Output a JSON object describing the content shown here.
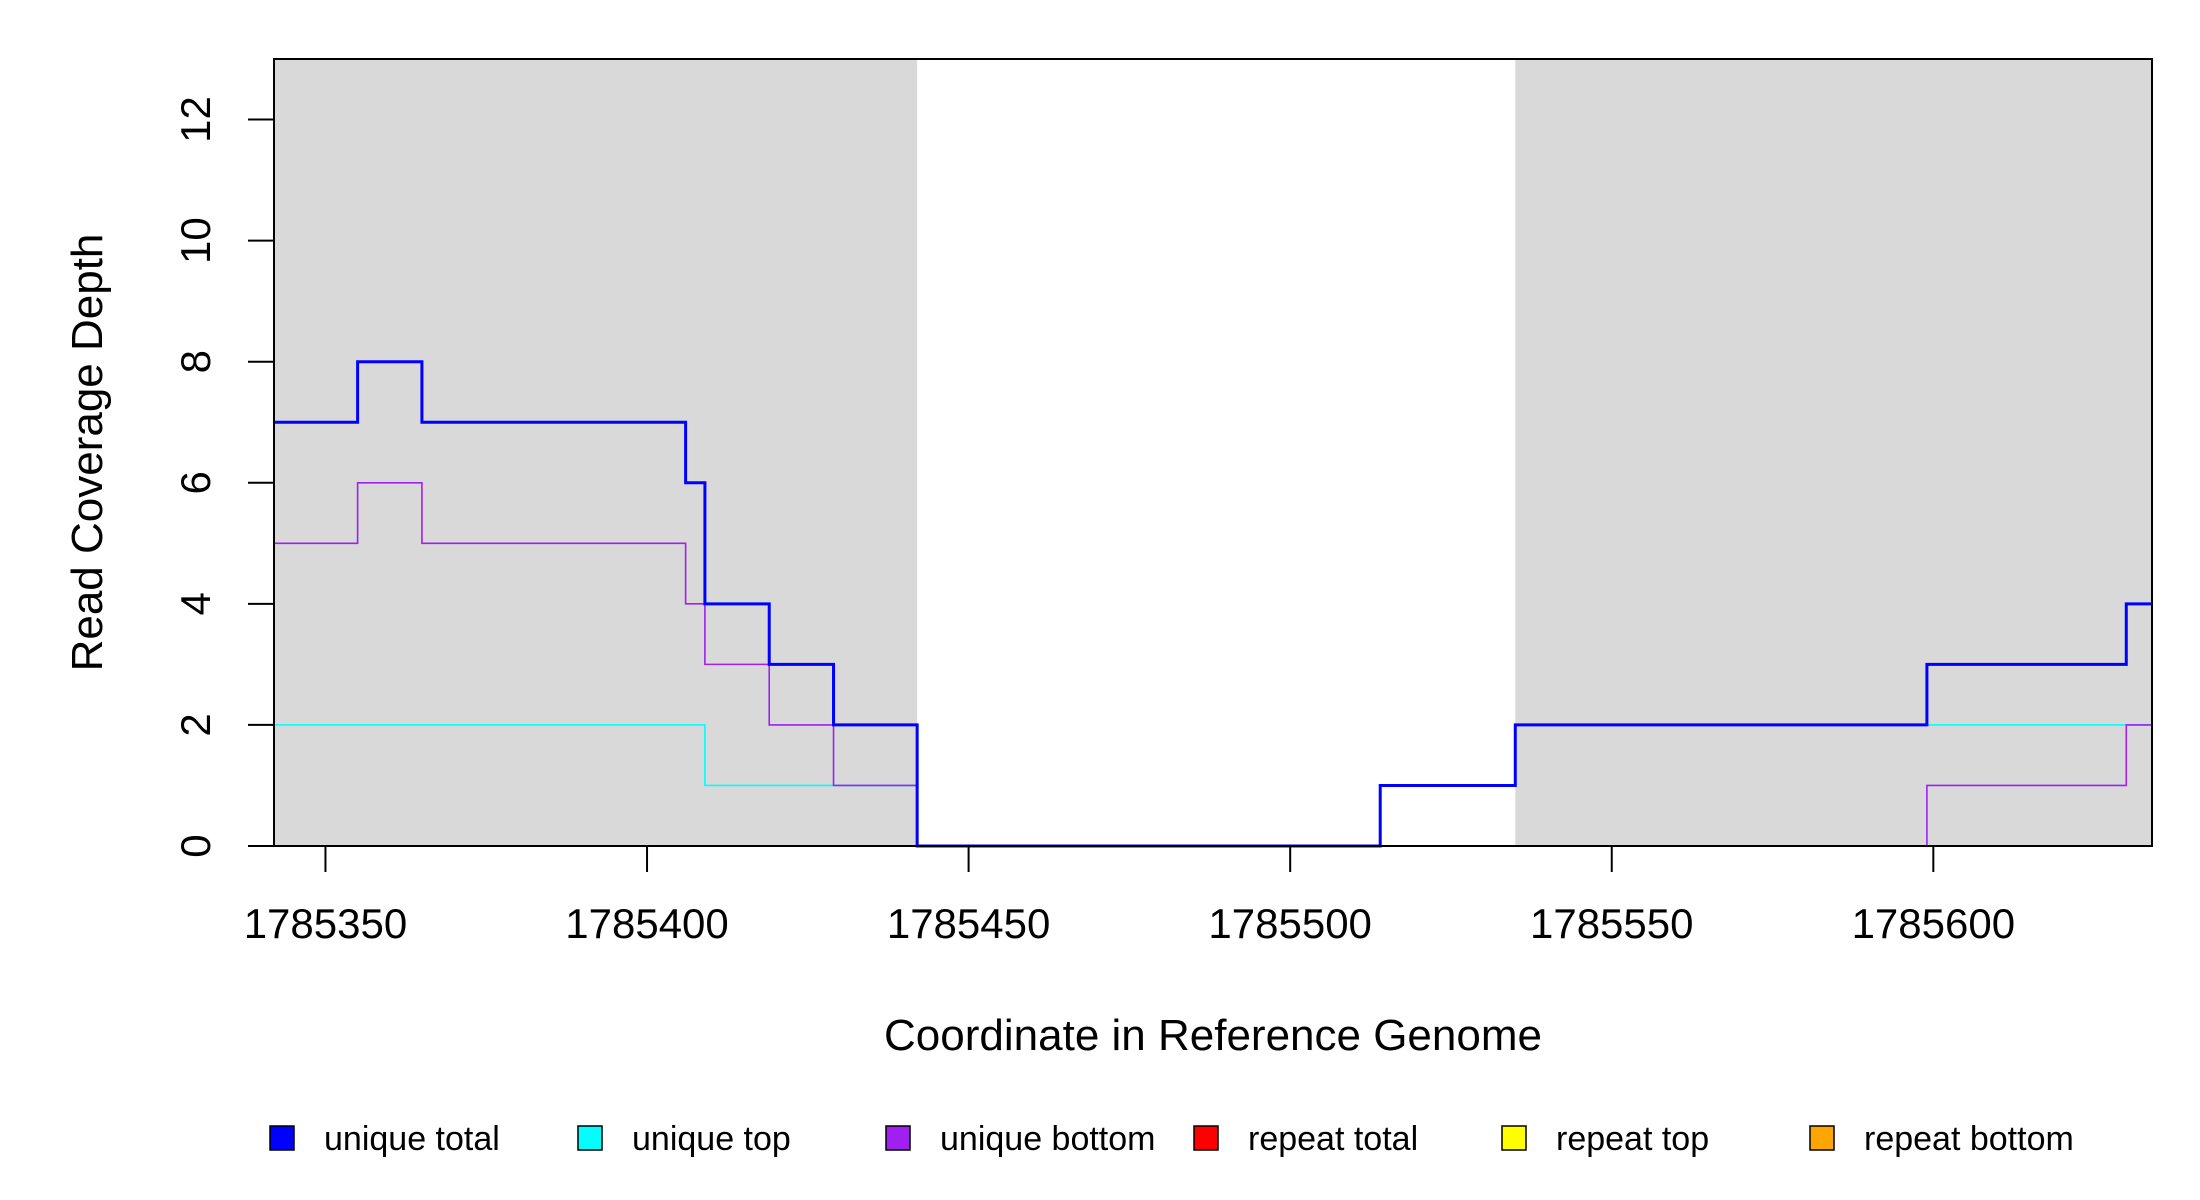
{
  "chart_data": {
    "type": "line",
    "xlabel": "Coordinate in Reference Genome",
    "ylabel": "Read Coverage Depth",
    "xlim": [
      1785342,
      1785634
    ],
    "ylim": [
      0,
      13
    ],
    "x_ticks": [
      1785350,
      1785400,
      1785450,
      1785500,
      1785550,
      1785600
    ],
    "y_ticks": [
      0,
      2,
      4,
      6,
      8,
      10,
      12
    ],
    "shaded_regions": [
      [
        1785342,
        1785442
      ],
      [
        1785535,
        1785634
      ]
    ],
    "legend": [
      {
        "label": "unique total",
        "color": "#0000ff"
      },
      {
        "label": "unique top",
        "color": "#00ffff"
      },
      {
        "label": "unique bottom",
        "color": "#a020f0"
      },
      {
        "label": "repeat total",
        "color": "#ff0000"
      },
      {
        "label": "repeat top",
        "color": "#ffff00"
      },
      {
        "label": "repeat bottom",
        "color": "#ffa500"
      }
    ],
    "series": [
      {
        "name": "unique top",
        "color": "#00ffff",
        "steps": [
          [
            1785342,
            2
          ],
          [
            1785409,
            1
          ],
          [
            1785442,
            0
          ],
          [
            1785514,
            1
          ],
          [
            1785535,
            2
          ],
          [
            1785634,
            2
          ]
        ]
      },
      {
        "name": "unique bottom",
        "color": "#a020f0",
        "steps": [
          [
            1785342,
            5
          ],
          [
            1785355,
            6
          ],
          [
            1785365,
            5
          ],
          [
            1785406,
            4
          ],
          [
            1785409,
            3
          ],
          [
            1785419,
            2
          ],
          [
            1785429,
            1
          ],
          [
            1785442,
            0
          ],
          [
            1785599,
            1
          ],
          [
            1785630,
            2
          ],
          [
            1785634,
            2
          ]
        ]
      },
      {
        "name": "unique total",
        "color": "#0000ff",
        "steps": [
          [
            1785342,
            7
          ],
          [
            1785355,
            8
          ],
          [
            1785365,
            7
          ],
          [
            1785406,
            6
          ],
          [
            1785409,
            4
          ],
          [
            1785419,
            3
          ],
          [
            1785429,
            2
          ],
          [
            1785442,
            0
          ],
          [
            1785514,
            1
          ],
          [
            1785535,
            2
          ],
          [
            1785599,
            3
          ],
          [
            1785630,
            4
          ],
          [
            1785634,
            4
          ]
        ]
      },
      {
        "name": "repeat total",
        "color": "#ff0000",
        "steps": [
          [
            1785342,
            0
          ],
          [
            1785634,
            0
          ]
        ]
      },
      {
        "name": "repeat top",
        "color": "#ffff00",
        "steps": [
          [
            1785342,
            0
          ],
          [
            1785634,
            0
          ]
        ]
      },
      {
        "name": "repeat bottom",
        "color": "#ffa500",
        "steps": [
          [
            1785342,
            0
          ],
          [
            1785634,
            0
          ]
        ]
      }
    ]
  }
}
